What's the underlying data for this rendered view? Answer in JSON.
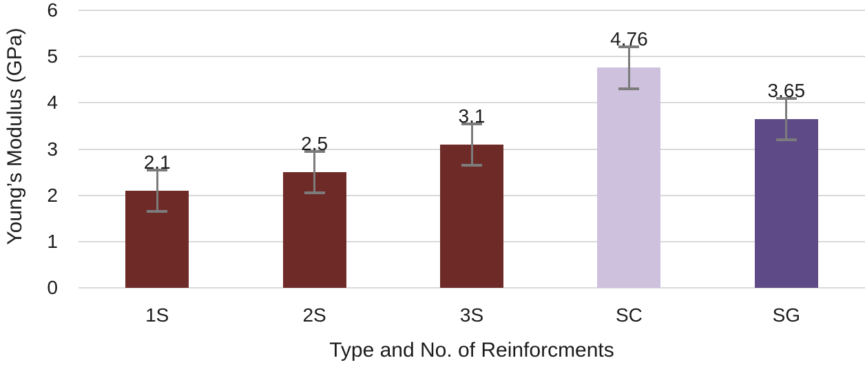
{
  "chart_data": {
    "type": "bar",
    "title": "",
    "xlabel": "Type and No. of Reinforcments",
    "ylabel": "Young’s Modulus (GPa)",
    "categories": [
      "1S",
      "2S",
      "3S",
      "SC",
      "SG"
    ],
    "values": [
      2.1,
      2.5,
      3.1,
      4.76,
      3.65
    ],
    "data_labels": [
      "2.1",
      "2.5",
      "3.1",
      "4.76",
      "3.65"
    ],
    "error_bars": [
      0.45,
      0.45,
      0.45,
      0.45,
      0.45
    ],
    "bar_colors": [
      "#6e2a27",
      "#6e2a27",
      "#6e2a27",
      "#cdc1de",
      "#5e4a86"
    ],
    "ylim": [
      0,
      6
    ],
    "yticks": [
      0,
      1,
      2,
      3,
      4,
      5,
      6
    ],
    "grid": "horizontal gridlines on",
    "legend_position": "none",
    "colors": {
      "gridline": "#d9d9d9",
      "error_bar": "#7c7c7c",
      "text": "#1c1c1c",
      "background": "#ffffff"
    }
  }
}
